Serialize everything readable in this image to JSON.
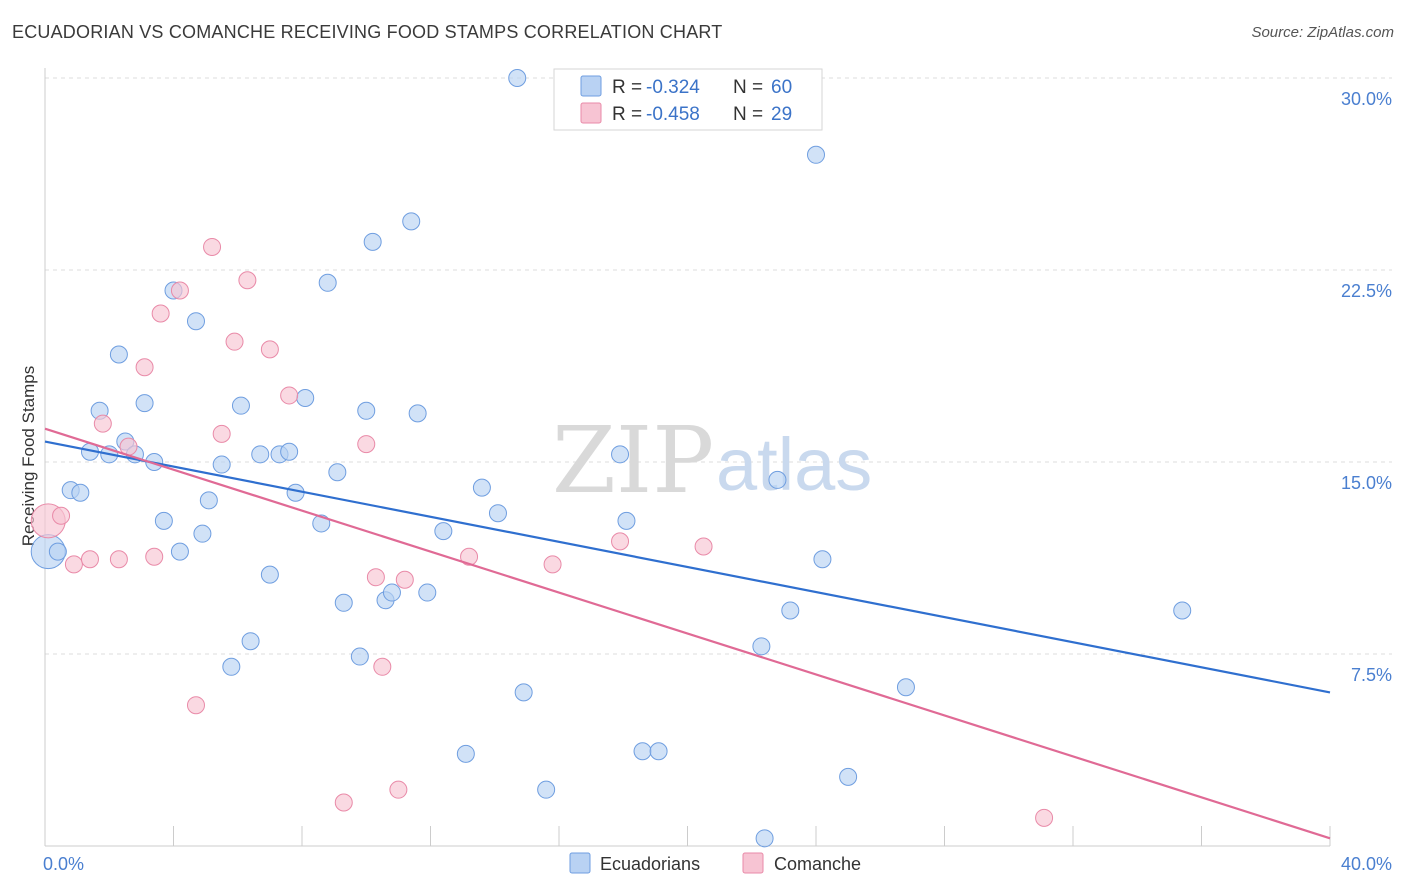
{
  "header": {
    "title": "ECUADORIAN VS COMANCHE RECEIVING FOOD STAMPS CORRELATION CHART",
    "source": "Source: ZipAtlas.com"
  },
  "watermark": {
    "zip": "ZIP",
    "atlas": "atlas"
  },
  "colors": {
    "ecuadorians_fill": "#b9d2f3",
    "ecuadorians_stroke": "#6f9ee0",
    "ecuadorians_line": "#2f6fcf",
    "comanche_fill": "#f7c4d3",
    "comanche_stroke": "#e98aa8",
    "comanche_line": "#e06a95",
    "tick_text": "#4a7fd0",
    "grid": "#dddddd"
  },
  "legend": {
    "r_label": "R =",
    "n_label": "N =",
    "rows": [
      {
        "r": "-0.324",
        "n": "60"
      },
      {
        "r": "-0.458",
        "n": "29"
      }
    ]
  },
  "chart_data": {
    "type": "scatter",
    "title": "ECUADORIAN VS COMANCHE RECEIVING FOOD STAMPS CORRELATION CHART",
    "xlabel": "",
    "ylabel": "Receiving Food Stamps",
    "xlim": [
      0,
      40
    ],
    "ylim": [
      0,
      30
    ],
    "x_tick_labels": [
      "0.0%",
      "40.0%"
    ],
    "y_ticks": [
      7.5,
      15.0,
      22.5,
      30.0
    ],
    "y_tick_labels": [
      "7.5%",
      "15.0%",
      "22.5%",
      "30.0%"
    ],
    "grid": "horizontal dashed",
    "legend_placement": "top-center",
    "series": [
      {
        "name": "Ecuadorians",
        "r": -0.324,
        "n": 60,
        "trend": {
          "x": [
            0,
            40
          ],
          "y": [
            15.8,
            6.0
          ]
        },
        "points": [
          {
            "x": 0.1,
            "y": 11.5,
            "big": true
          },
          {
            "x": 0.4,
            "y": 11.5
          },
          {
            "x": 0.8,
            "y": 13.9
          },
          {
            "x": 1.1,
            "y": 13.8
          },
          {
            "x": 1.4,
            "y": 15.4
          },
          {
            "x": 1.7,
            "y": 17.0
          },
          {
            "x": 2.0,
            "y": 15.3
          },
          {
            "x": 2.3,
            "y": 19.2
          },
          {
            "x": 2.5,
            "y": 15.8
          },
          {
            "x": 2.8,
            "y": 15.3
          },
          {
            "x": 3.1,
            "y": 17.3
          },
          {
            "x": 3.4,
            "y": 15.0
          },
          {
            "x": 3.7,
            "y": 12.7
          },
          {
            "x": 4.0,
            "y": 21.7
          },
          {
            "x": 4.2,
            "y": 11.5
          },
          {
            "x": 4.7,
            "y": 20.5
          },
          {
            "x": 4.9,
            "y": 12.2
          },
          {
            "x": 5.1,
            "y": 13.5
          },
          {
            "x": 5.5,
            "y": 14.9
          },
          {
            "x": 5.8,
            "y": 7.0
          },
          {
            "x": 6.1,
            "y": 17.2
          },
          {
            "x": 6.4,
            "y": 8.0
          },
          {
            "x": 6.7,
            "y": 15.3
          },
          {
            "x": 7.0,
            "y": 10.6
          },
          {
            "x": 7.3,
            "y": 15.3
          },
          {
            "x": 7.6,
            "y": 15.4
          },
          {
            "x": 7.8,
            "y": 13.8
          },
          {
            "x": 8.1,
            "y": 17.5
          },
          {
            "x": 8.6,
            "y": 12.6
          },
          {
            "x": 8.8,
            "y": 22.0
          },
          {
            "x": 9.1,
            "y": 14.6
          },
          {
            "x": 9.3,
            "y": 9.5
          },
          {
            "x": 9.8,
            "y": 7.4
          },
          {
            "x": 10.0,
            "y": 17.0
          },
          {
            "x": 10.2,
            "y": 23.6
          },
          {
            "x": 10.6,
            "y": 9.6
          },
          {
            "x": 10.8,
            "y": 9.9
          },
          {
            "x": 11.4,
            "y": 24.4
          },
          {
            "x": 11.6,
            "y": 16.9
          },
          {
            "x": 11.9,
            "y": 9.9
          },
          {
            "x": 12.4,
            "y": 12.3
          },
          {
            "x": 13.1,
            "y": 3.6
          },
          {
            "x": 13.6,
            "y": 14.0
          },
          {
            "x": 14.1,
            "y": 13.0
          },
          {
            "x": 14.7,
            "y": 30.0
          },
          {
            "x": 14.9,
            "y": 6.0
          },
          {
            "x": 15.6,
            "y": 2.2
          },
          {
            "x": 17.9,
            "y": 15.3
          },
          {
            "x": 18.1,
            "y": 12.7
          },
          {
            "x": 18.6,
            "y": 3.7
          },
          {
            "x": 19.1,
            "y": 3.7
          },
          {
            "x": 22.4,
            "y": 0.3
          },
          {
            "x": 22.8,
            "y": 14.3
          },
          {
            "x": 22.3,
            "y": 7.8
          },
          {
            "x": 23.2,
            "y": 9.2
          },
          {
            "x": 24.0,
            "y": 27.0
          },
          {
            "x": 24.2,
            "y": 11.2
          },
          {
            "x": 25.0,
            "y": 2.7
          },
          {
            "x": 26.8,
            "y": 6.2
          },
          {
            "x": 35.4,
            "y": 9.2
          }
        ]
      },
      {
        "name": "Comanche",
        "r": -0.458,
        "n": 29,
        "trend": {
          "x": [
            0,
            40
          ],
          "y": [
            16.3,
            0.3
          ]
        },
        "points": [
          {
            "x": 0.1,
            "y": 12.7,
            "big": true
          },
          {
            "x": 0.5,
            "y": 12.9
          },
          {
            "x": 0.9,
            "y": 11.0
          },
          {
            "x": 1.4,
            "y": 11.2
          },
          {
            "x": 1.8,
            "y": 16.5
          },
          {
            "x": 2.3,
            "y": 11.2
          },
          {
            "x": 2.6,
            "y": 15.6
          },
          {
            "x": 3.1,
            "y": 18.7
          },
          {
            "x": 3.4,
            "y": 11.3
          },
          {
            "x": 3.6,
            "y": 20.8
          },
          {
            "x": 4.2,
            "y": 21.7
          },
          {
            "x": 4.7,
            "y": 5.5
          },
          {
            "x": 5.2,
            "y": 23.4
          },
          {
            "x": 5.5,
            "y": 16.1
          },
          {
            "x": 5.9,
            "y": 19.7
          },
          {
            "x": 6.3,
            "y": 22.1
          },
          {
            "x": 7.0,
            "y": 19.4
          },
          {
            "x": 7.6,
            "y": 17.6
          },
          {
            "x": 9.3,
            "y": 1.7
          },
          {
            "x": 10.0,
            "y": 15.7
          },
          {
            "x": 10.3,
            "y": 10.5
          },
          {
            "x": 10.5,
            "y": 7.0
          },
          {
            "x": 11.0,
            "y": 2.2
          },
          {
            "x": 11.2,
            "y": 10.4
          },
          {
            "x": 13.2,
            "y": 11.3
          },
          {
            "x": 15.8,
            "y": 11.0
          },
          {
            "x": 17.9,
            "y": 11.9
          },
          {
            "x": 20.5,
            "y": 11.7
          },
          {
            "x": 31.1,
            "y": 1.1
          }
        ]
      }
    ]
  }
}
